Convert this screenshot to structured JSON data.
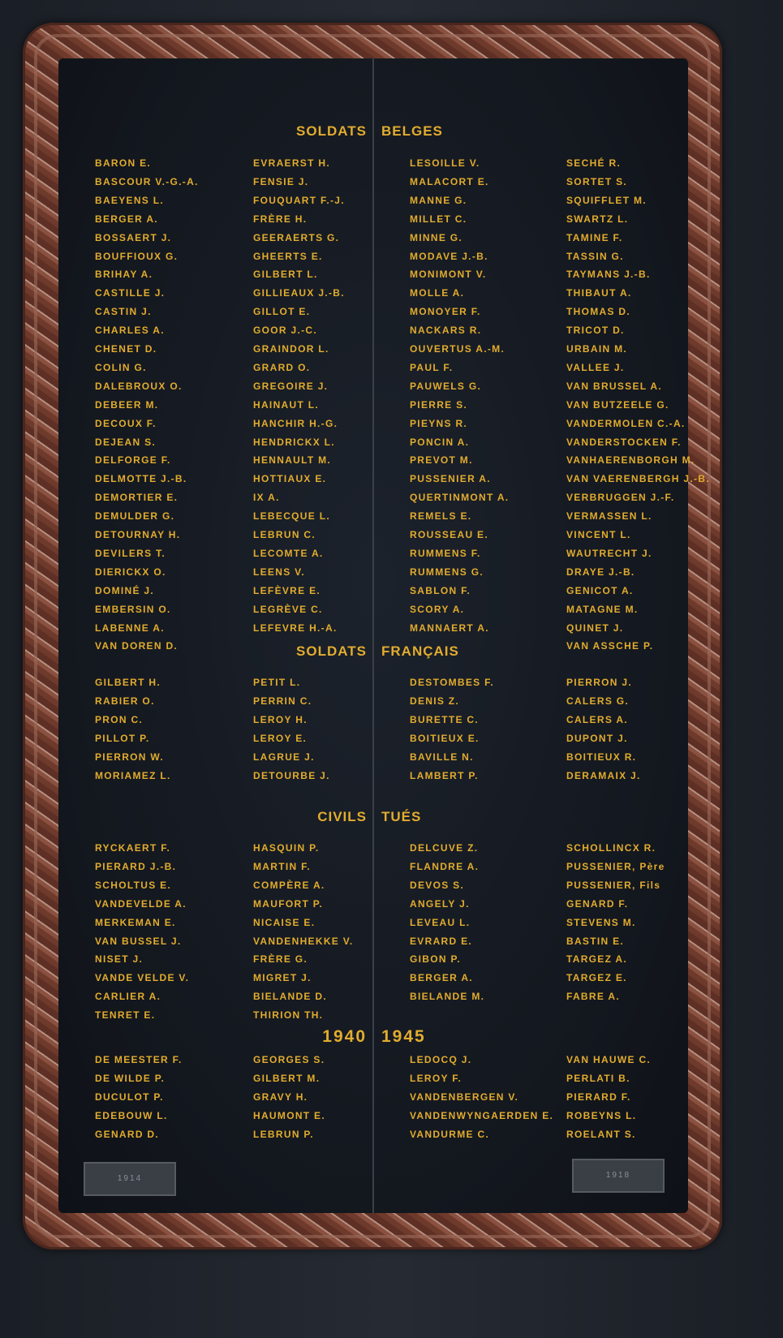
{
  "colors": {
    "lettering": "#e2ac2e",
    "panel": "#13171e",
    "frame": "#6e3a2c"
  },
  "sections": [
    {
      "title_left": "SOLDATS",
      "title_right": "BELGES",
      "columns": [
        [
          "BARON E.",
          "BASCOUR V.-G.-A.",
          "BAEYENS L.",
          "BERGER A.",
          "BOSSAERT J.",
          "BOUFFIOUX G.",
          "BRIHAY A.",
          "CASTILLE J.",
          "CASTIN J.",
          "CHARLES A.",
          "CHENET D.",
          "COLIN G.",
          "DALEBROUX O.",
          "DEBEER M.",
          "DECOUX F.",
          "DEJEAN S.",
          "DELFORGE F.",
          "DELMOTTE J.-B.",
          "DEMORTIER E.",
          "DEMULDER G.",
          "DETOURNAY H.",
          "DEVILERS T.",
          "DIERICKX O.",
          "DOMINÉ J.",
          "EMBERSIN O.",
          "LABENNE A.",
          "VAN DOREN D."
        ],
        [
          "EVRAERST H.",
          "FENSIE J.",
          "FOUQUART F.-J.",
          "FRÈRE H.",
          "GEERAERTS G.",
          "GHEERTS E.",
          "GILBERT L.",
          "GILLIEAUX J.-B.",
          "GILLOT E.",
          "GOOR J.-C.",
          "GRAINDOR L.",
          "GRARD O.",
          "GREGOIRE J.",
          "HAINAUT L.",
          "HANCHIR H.-G.",
          "HENDRICKX L.",
          "HENNAULT M.",
          "HOTTIAUX E.",
          "IX A.",
          "LEBECQUE L.",
          "LEBRUN C.",
          "LECOMTE A.",
          "LEENS V.",
          "LEFÈVRE E.",
          "LEGRÈVE C.",
          "LEFEVRE H.-A."
        ],
        [
          "LESOILLE V.",
          "MALACORT E.",
          "MANNE G.",
          "MILLET C.",
          "MINNE G.",
          "MODAVE J.-B.",
          "MONIMONT V.",
          "MOLLE A.",
          "MONOYER F.",
          "NACKARS R.",
          "OUVERTUS A.-M.",
          "PAUL F.",
          "PAUWELS G.",
          "PIERRE S.",
          "PIEYNS R.",
          "PONCIN A.",
          "PREVOT M.",
          "PUSSENIER A.",
          "QUERTINMONT A.",
          "REMELS E.",
          "ROUSSEAU E.",
          "RUMMENS F.",
          "RUMMENS G.",
          "SABLON F.",
          "SCORY A.",
          "MANNAERT A."
        ],
        [
          "SECHÉ R.",
          "SORTET S.",
          "SQUIFFLET M.",
          "SWARTZ L.",
          "TAMINE F.",
          "TASSIN G.",
          "TAYMANS J.-B.",
          "THIBAUT A.",
          "THOMAS D.",
          "TRICOT D.",
          "URBAIN M.",
          "VALLEE J.",
          "VAN BRUSSEL A.",
          "VAN BUTZEELE G.",
          "VANDERMOLEN C.-A.",
          "VANDERSTOCKEN F.",
          "VANHAERENBORGH M.",
          "VAN VAERENBERGH J.-B.",
          "VERBRUGGEN J.-F.",
          "VERMASSEN L.",
          "VINCENT L.",
          "WAUTRECHT J.",
          "DRAYE J.-B.",
          "GENICOT A.",
          "MATAGNE M.",
          "QUINET J.",
          "VAN ASSCHE P."
        ]
      ]
    },
    {
      "title_left": "SOLDATS",
      "title_right": "FRANÇAIS",
      "columns": [
        [
          "GILBERT H.",
          "RABIER O.",
          "PRON C.",
          "PILLOT P.",
          "PIERRON W.",
          "MORIAMEZ L."
        ],
        [
          "PETIT L.",
          "PERRIN C.",
          "LEROY H.",
          "LEROY E.",
          "LAGRUE J.",
          "DETOURBE J."
        ],
        [
          "DESTOMBES F.",
          "DENIS Z.",
          "BURETTE C.",
          "BOITIEUX E.",
          "BAVILLE N.",
          "LAMBERT P."
        ],
        [
          "PIERRON J.",
          "CALERS G.",
          "CALERS A.",
          "DUPONT J.",
          "BOITIEUX R.",
          "DERAMAIX J."
        ]
      ]
    },
    {
      "title_left": "CIVILS",
      "title_right": "TUÉS",
      "columns": [
        [
          "RYCKAERT F.",
          "PIERARD J.-B.",
          "SCHOLTUS E.",
          "VANDEVELDE A.",
          "MERKEMAN E.",
          "VAN BUSSEL J.",
          "NISET J.",
          "VANDE VELDE V.",
          "CARLIER A.",
          "TENRET E."
        ],
        [
          "HASQUIN P.",
          "MARTIN F.",
          "COMPÈRE A.",
          "MAUFORT P.",
          "NICAISE E.",
          "VANDENHEKKE V.",
          "FRÈRE G.",
          "MIGRET J.",
          "BIELANDE D.",
          "THIRION TH."
        ],
        [
          "DELCUVE Z.",
          "FLANDRE A.",
          "DEVOS S.",
          "ANGELY J.",
          "LEVEAU L.",
          "EVRARD E.",
          "GIBON P.",
          "BERGER A.",
          "BIELANDE M."
        ],
        [
          "SCHOLLINCX R.",
          "PUSSENIER, Père",
          "PUSSENIER, Fils",
          "GENARD F.",
          "STEVENS M.",
          "BASTIN E.",
          "TARGEZ A.",
          "TARGEZ E.",
          "FABRE A."
        ]
      ]
    },
    {
      "title_left": "1940",
      "title_right": "1945",
      "columns": [
        [
          "DE MEESTER F.",
          "DE WILDE P.",
          "DUCULOT P.",
          "EDEBOUW L.",
          "GENARD D."
        ],
        [
          "GEORGES S.",
          "GILBERT M.",
          "GRAVY H.",
          "HAUMONT E.",
          "LEBRUN P."
        ],
        [
          "LEDOCQ J.",
          "LEROY F.",
          "VANDENBERGEN V.",
          "VANDENWYNGAERDEN E.",
          "VANDURME C."
        ],
        [
          "VAN HAUWE C.",
          "PERLATI B.",
          "PIERARD F.",
          "ROBEYNS L.",
          "ROELANT S."
        ]
      ]
    }
  ],
  "plaques": {
    "left": "1914",
    "right": "1918"
  }
}
